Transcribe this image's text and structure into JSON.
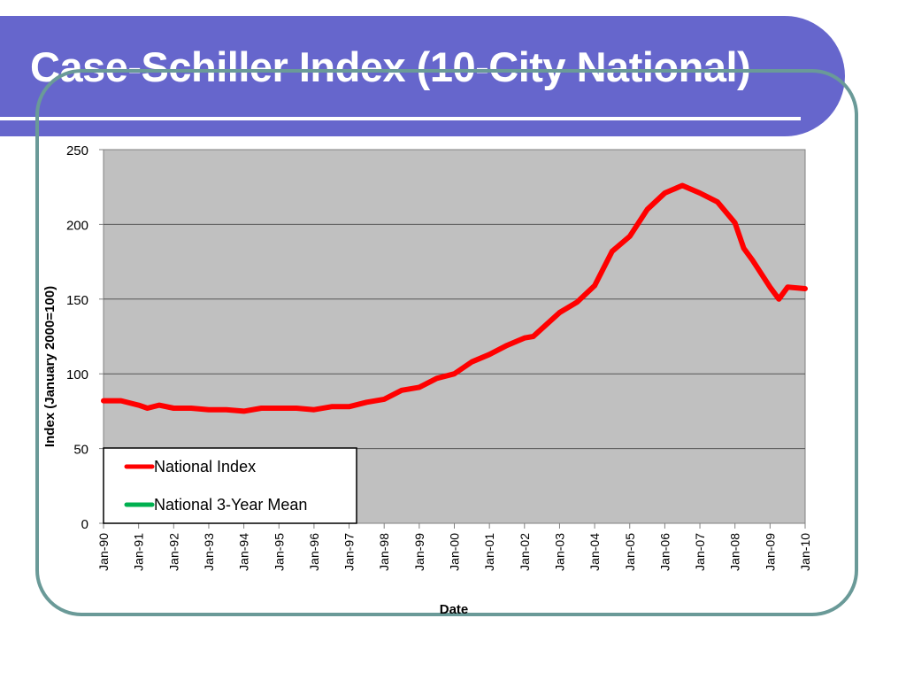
{
  "slide": {
    "title": "Case-Schiller Index (10-City National)"
  },
  "colors": {
    "title_band": "#6666cc",
    "frame_border": "#6a9a98",
    "plot_background": "#c0c0c0",
    "national_index": "#ff0000",
    "three_year_mean": "#00b050"
  },
  "chart_data": {
    "type": "line",
    "title": "",
    "xlabel": "Date",
    "ylabel": "Index (January 2000=100)",
    "ylim": [
      0,
      250
    ],
    "yticks": [
      "0",
      "50",
      "100",
      "150",
      "200",
      "250"
    ],
    "xticks": [
      "Jan-90",
      "Jan-91",
      "Jan-92",
      "Jan-93",
      "Jan-94",
      "Jan-95",
      "Jan-96",
      "Jan-97",
      "Jan-98",
      "Jan-99",
      "Jan-00",
      "Jan-01",
      "Jan-02",
      "Jan-03",
      "Jan-04",
      "Jan-05",
      "Jan-06",
      "Jan-07",
      "Jan-08",
      "Jan-09",
      "Jan-10"
    ],
    "grid": "horizontal",
    "legend_position": "bottom-left",
    "series": [
      {
        "name": "National Index",
        "color": "#ff0000",
        "points": [
          [
            "Jan-1990",
            82
          ],
          [
            "Jul-1990",
            82
          ],
          [
            "Jan-1991",
            79
          ],
          [
            "Apr-1991",
            77
          ],
          [
            "Aug-1991",
            79
          ],
          [
            "Jan-1992",
            77
          ],
          [
            "Jul-1992",
            77
          ],
          [
            "Jan-1993",
            76
          ],
          [
            "Jul-1993",
            76
          ],
          [
            "Jan-1994",
            75
          ],
          [
            "Jul-1994",
            77
          ],
          [
            "Jan-1995",
            77
          ],
          [
            "Jul-1995",
            77
          ],
          [
            "Jan-1996",
            76
          ],
          [
            "Jul-1996",
            78
          ],
          [
            "Jan-1997",
            78
          ],
          [
            "Jul-1997",
            81
          ],
          [
            "Jan-1998",
            83
          ],
          [
            "Jul-1998",
            89
          ],
          [
            "Jan-1999",
            91
          ],
          [
            "Jul-1999",
            97
          ],
          [
            "Jan-2000",
            100
          ],
          [
            "Jul-2000",
            108
          ],
          [
            "Jan-2001",
            113
          ],
          [
            "Jul-2001",
            119
          ],
          [
            "Jan-2002",
            124
          ],
          [
            "Apr-2002",
            125
          ],
          [
            "Jan-2003",
            141
          ],
          [
            "Jul-2003",
            148
          ],
          [
            "Jan-2004",
            159
          ],
          [
            "Jul-2004",
            182
          ],
          [
            "Jan-2005",
            192
          ],
          [
            "Jul-2005",
            210
          ],
          [
            "Jan-2006",
            221
          ],
          [
            "Jul-2006",
            226
          ],
          [
            "Jan-2007",
            221
          ],
          [
            "Jul-2007",
            215
          ],
          [
            "Jan-2008",
            201
          ],
          [
            "Apr-2008",
            184
          ],
          [
            "Jul-2008",
            176
          ],
          [
            "Jan-2009",
            158
          ],
          [
            "Apr-2009",
            150
          ],
          [
            "Jul-2009",
            158
          ],
          [
            "Jan-2010",
            157
          ]
        ]
      },
      {
        "name": "National 3-Year Mean",
        "color": "#00b050",
        "points": []
      }
    ]
  }
}
